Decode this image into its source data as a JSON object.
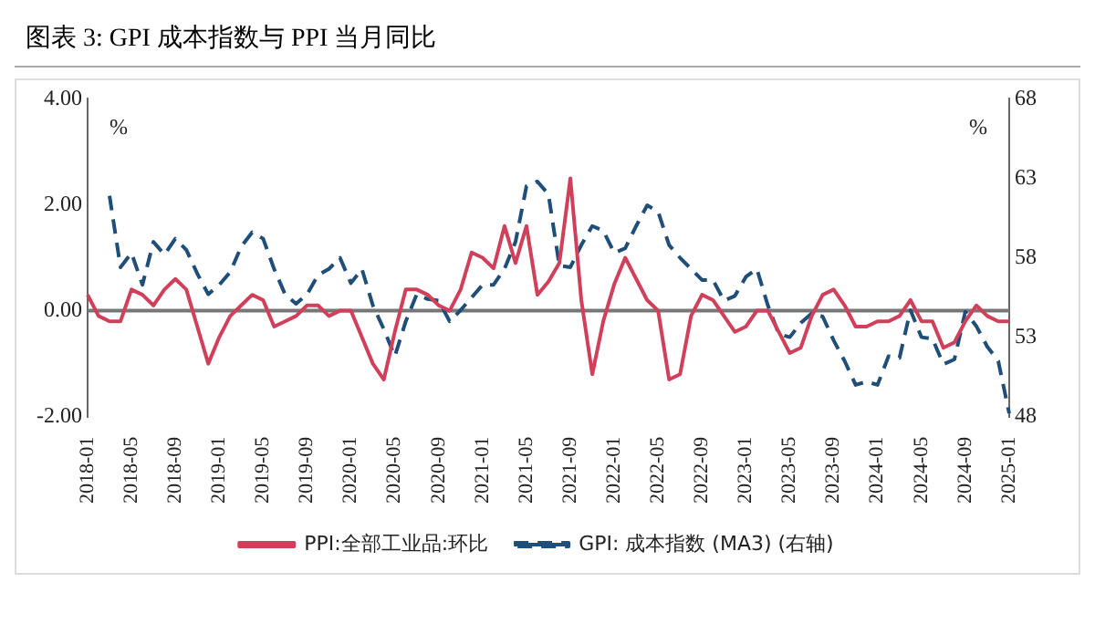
{
  "chart_data": {
    "type": "line",
    "title": "图表 3:  GPI 成本指数与 PPI 当月同比",
    "categories": [
      "2018-01",
      null,
      null,
      null,
      "2018-05",
      null,
      null,
      null,
      "2018-09",
      null,
      null,
      null,
      "2019-01",
      null,
      null,
      null,
      "2019-05",
      null,
      null,
      null,
      "2019-09",
      null,
      null,
      null,
      "2020-01",
      null,
      null,
      null,
      "2020-05",
      null,
      null,
      null,
      "2020-09",
      null,
      null,
      null,
      "2021-01",
      null,
      null,
      null,
      "2021-05",
      null,
      null,
      null,
      "2021-09",
      null,
      null,
      null,
      "2022-01",
      null,
      null,
      null,
      "2022-05",
      null,
      null,
      null,
      "2022-09",
      null,
      null,
      null,
      "2023-01",
      null,
      null,
      null,
      "2023-05",
      null,
      null,
      null,
      "2023-09",
      null,
      null,
      null,
      "2024-01",
      null,
      null,
      null,
      "2024-05",
      null,
      null,
      null,
      "2024-09",
      null,
      null,
      null,
      "2025-01"
    ],
    "series": [
      {
        "name": "PPI:全部工业品:环比",
        "color": "#d0405a",
        "line_style": "solid",
        "values": [
          0.3,
          -0.1,
          -0.2,
          -0.2,
          0.4,
          0.3,
          0.1,
          0.4,
          0.6,
          0.4,
          -0.3,
          -1.0,
          -0.5,
          -0.1,
          0.1,
          0.3,
          0.2,
          -0.3,
          -0.2,
          -0.1,
          0.1,
          0.1,
          -0.1,
          0.0,
          0.0,
          -0.5,
          -1.0,
          -1.3,
          -0.4,
          0.4,
          0.4,
          0.3,
          0.1,
          0.0,
          0.4,
          1.1,
          1.0,
          0.8,
          1.6,
          0.9,
          1.6,
          0.3,
          0.55,
          0.9,
          2.5,
          0.2,
          -1.2,
          -0.2,
          0.5,
          1.0,
          0.6,
          0.2,
          0.0,
          -1.3,
          -1.2,
          -0.1,
          0.3,
          0.2,
          -0.1,
          -0.4,
          -0.3,
          0.0,
          0.0,
          -0.4,
          -0.8,
          -0.7,
          -0.1,
          0.3,
          0.4,
          0.1,
          -0.3,
          -0.3,
          -0.2,
          -0.2,
          -0.1,
          0.2,
          -0.2,
          -0.2,
          -0.7,
          -0.6,
          -0.2,
          0.1,
          -0.1,
          -0.2,
          -0.2
        ]
      },
      {
        "name": "GPI: 成本指数 (MA3) (右轴)",
        "color": "#1f4e79",
        "line_style": "dashed",
        "axis": "y2",
        "values": [
          null,
          null,
          61.9,
          57.4,
          58.3,
          56.3,
          59.0,
          58.2,
          59.2,
          58.5,
          57.0,
          55.7,
          56.3,
          57.1,
          58.7,
          59.6,
          59.2,
          57.3,
          55.7,
          55.1,
          55.7,
          56.9,
          57.3,
          58.0,
          56.4,
          57.3,
          55.0,
          53.5,
          51.8,
          54.0,
          55.7,
          55.4,
          55.3,
          54.0,
          54.7,
          55.5,
          56.3,
          56.3,
          57.3,
          59.0,
          62.5,
          62.8,
          62.0,
          57.5,
          57.4,
          58.8,
          60.0,
          59.7,
          58.3,
          58.6,
          60.0,
          61.3,
          60.9,
          58.8,
          58.0,
          57.3,
          56.6,
          56.6,
          55.3,
          55.6,
          56.8,
          57.3,
          55.0,
          53.2,
          53.0,
          53.9,
          54.5,
          54.3,
          52.8,
          51.5,
          50.0,
          50.2,
          50.0,
          51.8,
          51.7,
          54.7,
          53.0,
          52.9,
          51.3,
          51.6,
          54.6,
          53.7,
          52.4,
          51.5,
          48.2
        ]
      }
    ],
    "ylim": [
      -2,
      4
    ],
    "yticks": [
      {
        "value": -2,
        "label": "-2.00"
      },
      {
        "value": 0,
        "label": "0.00"
      },
      {
        "value": 2,
        "label": "2.00"
      },
      {
        "value": 4,
        "label": "4.00"
      }
    ],
    "y2lim": [
      48,
      68
    ],
    "y2ticks": [
      48,
      53,
      58,
      63,
      68
    ],
    "grid": false,
    "ref_lines": [
      {
        "axis": "y",
        "value": 0,
        "color": "#777777"
      }
    ],
    "legend": "bottom",
    "marker": "none",
    "annotations": [
      "%",
      "%"
    ]
  }
}
